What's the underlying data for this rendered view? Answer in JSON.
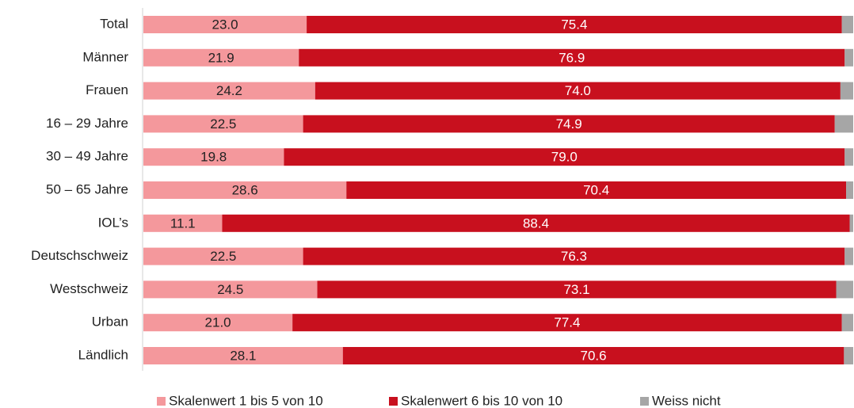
{
  "chart_data": {
    "type": "stacked-bar-horizontal",
    "categories": [
      "Total",
      "Männer",
      "Frauen",
      "16 – 29 Jahre",
      "30 – 49 Jahre",
      "50 – 65 Jahre",
      "IOL’s",
      "Deutschschweiz",
      "Westschweiz",
      "Urban",
      "Ländlich"
    ],
    "xlim": [
      0,
      100
    ],
    "legend": "bottom",
    "series": [
      {
        "name": "Skalenwert 1 bis 5 von 10",
        "color": "#f4989c",
        "values": [
          23.0,
          21.9,
          24.2,
          22.5,
          19.8,
          28.6,
          11.1,
          22.5,
          24.5,
          21.0,
          28.1
        ],
        "value_labels": [
          "23.0",
          "21.9",
          "24.2",
          "22.5",
          "19.8",
          "28.6",
          "11.1",
          "22.5",
          "24.5",
          "21.0",
          "28.1"
        ]
      },
      {
        "name": "Skalenwert 6 bis 10 von 10",
        "color": "#c8101e",
        "values": [
          75.4,
          76.9,
          74.0,
          74.9,
          79.0,
          70.4,
          88.4,
          76.3,
          73.1,
          77.4,
          70.6
        ],
        "value_labels": [
          "75.4",
          "76.9",
          "74.0",
          "74.9",
          "79.0",
          "70.4",
          "88.4",
          "76.3",
          "73.1",
          "77.4",
          "70.6"
        ]
      },
      {
        "name": "Weiss nicht",
        "color": "#a6a6a6",
        "values": [
          1.6,
          1.2,
          1.8,
          2.6,
          1.2,
          1.0,
          0.5,
          1.2,
          2.4,
          1.6,
          1.3
        ]
      }
    ]
  }
}
